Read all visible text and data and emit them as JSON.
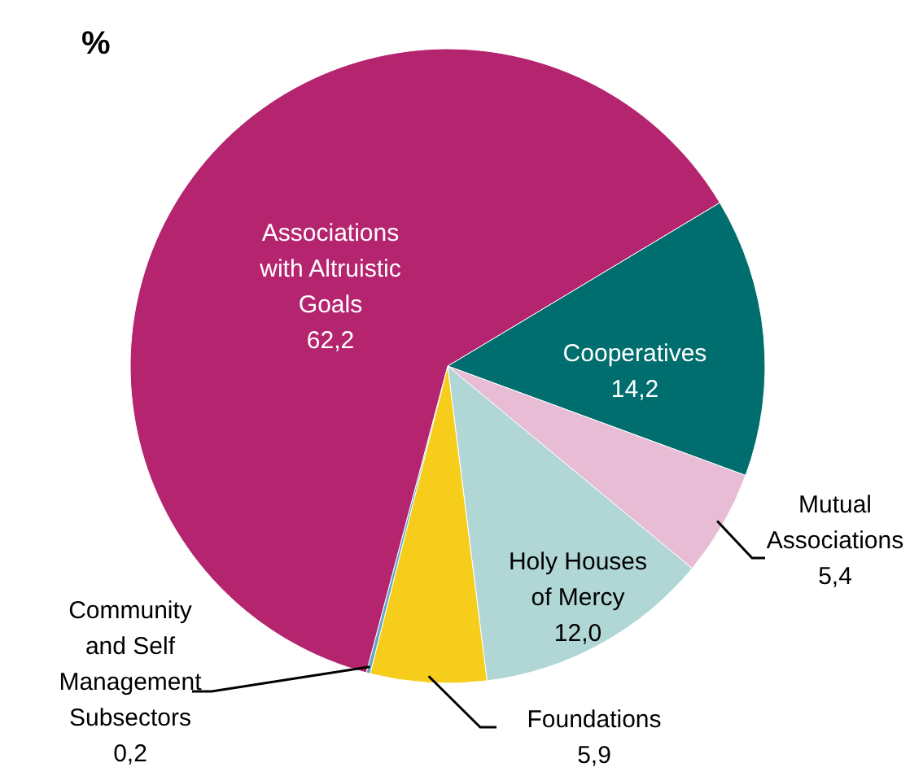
{
  "chart_data": {
    "type": "pie",
    "title": "%",
    "categories": [
      "Cooperatives",
      "Mutual Associations",
      "Holy Houses of Mercy",
      "Foundations",
      "Community and Self Management Subsectors",
      "Associations with Altruistic Goals"
    ],
    "values": [
      14.2,
      5.4,
      12.0,
      5.9,
      0.2,
      62.2
    ],
    "value_labels": [
      "14,2",
      "5,4",
      "12,0",
      "5,9",
      "0,2",
      "62,2"
    ],
    "colors": [
      "#006e6e",
      "#e8bcd4",
      "#b0d6d6",
      "#f5cd1a",
      "#5fa8c8",
      "#b5246e"
    ]
  }
}
